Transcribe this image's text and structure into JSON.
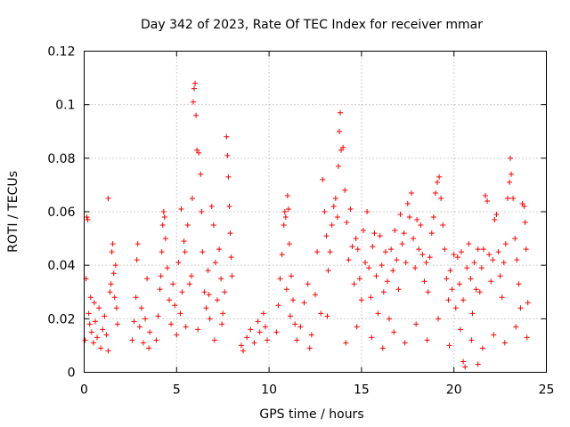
{
  "chart_data": {
    "type": "scatter",
    "title": "Day 342 of 2023, Rate Of TEC Index for receiver mmar",
    "xlabel": "GPS time / hours",
    "ylabel": "ROTI / TECUs",
    "xlim": [
      0,
      25
    ],
    "ylim": [
      0,
      0.12
    ],
    "x_ticks": [
      0,
      5,
      10,
      15,
      20,
      25
    ],
    "x_tick_labels": [
      "0",
      "5",
      "10",
      "15",
      "20",
      "25"
    ],
    "y_ticks": [
      0,
      0.02,
      0.04,
      0.06,
      0.08,
      0.1,
      0.12
    ],
    "y_tick_labels": [
      "0",
      "0.02",
      "0.04",
      "0.06",
      "0.08",
      "0.1",
      "0.12"
    ],
    "grid": true,
    "marker": "+",
    "color": "#ff0000",
    "series": [
      {
        "points": [
          [
            0.05,
            0.012
          ],
          [
            0.1,
            0.035
          ],
          [
            0.15,
            0.058
          ],
          [
            0.2,
            0.057
          ],
          [
            0.25,
            0.022
          ],
          [
            0.3,
            0.018
          ],
          [
            0.4,
            0.015
          ],
          [
            0.5,
            0.011
          ],
          [
            0.6,
            0.019
          ],
          [
            0.7,
            0.013
          ],
          [
            0.8,
            0.024
          ],
          [
            0.9,
            0.009
          ],
          [
            1.0,
            0.016
          ],
          [
            1.1,
            0.021
          ],
          [
            1.2,
            0.014
          ],
          [
            1.3,
            0.008
          ],
          [
            1.4,
            0.03
          ],
          [
            1.5,
            0.045
          ],
          [
            1.55,
            0.048
          ],
          [
            1.6,
            0.037
          ],
          [
            1.65,
            0.028
          ],
          [
            1.7,
            0.04
          ],
          [
            1.75,
            0.024
          ],
          [
            1.8,
            0.018
          ],
          [
            1.3,
            0.065
          ],
          [
            0.35,
            0.028
          ],
          [
            0.55,
            0.026
          ],
          [
            1.45,
            0.033
          ],
          [
            2.6,
            0.012
          ],
          [
            2.7,
            0.019
          ],
          [
            2.8,
            0.028
          ],
          [
            2.85,
            0.042
          ],
          [
            2.9,
            0.048
          ],
          [
            3.0,
            0.017
          ],
          [
            3.1,
            0.024
          ],
          [
            3.2,
            0.011
          ],
          [
            3.3,
            0.02
          ],
          [
            3.4,
            0.035
          ],
          [
            3.5,
            0.009
          ],
          [
            3.55,
            0.015
          ],
          [
            3.9,
            0.012
          ],
          [
            4.0,
            0.021
          ],
          [
            4.1,
            0.031
          ],
          [
            4.2,
            0.045
          ],
          [
            4.25,
            0.055
          ],
          [
            4.3,
            0.06
          ],
          [
            4.35,
            0.058
          ],
          [
            4.4,
            0.05
          ],
          [
            4.5,
            0.039
          ],
          [
            4.6,
            0.027
          ],
          [
            4.7,
            0.018
          ],
          [
            4.8,
            0.033
          ],
          [
            4.9,
            0.025
          ],
          [
            5.0,
            0.014
          ],
          [
            5.1,
            0.041
          ],
          [
            5.2,
            0.022
          ],
          [
            5.3,
            0.03
          ],
          [
            5.4,
            0.049
          ],
          [
            5.5,
            0.017
          ],
          [
            5.6,
            0.055
          ],
          [
            5.7,
            0.033
          ],
          [
            5.8,
            0.036
          ],
          [
            5.85,
            0.065
          ],
          [
            5.9,
            0.101
          ],
          [
            5.95,
            0.106
          ],
          [
            6.0,
            0.108
          ],
          [
            6.05,
            0.096
          ],
          [
            6.1,
            0.083
          ],
          [
            6.2,
            0.082
          ],
          [
            6.3,
            0.074
          ],
          [
            6.35,
            0.06
          ],
          [
            6.4,
            0.045
          ],
          [
            6.5,
            0.03
          ],
          [
            6.6,
            0.024
          ],
          [
            6.7,
            0.038
          ],
          [
            6.8,
            0.02
          ],
          [
            6.9,
            0.062
          ],
          [
            7.0,
            0.055
          ],
          [
            7.1,
            0.041
          ],
          [
            7.2,
            0.027
          ],
          [
            7.3,
            0.046
          ],
          [
            7.4,
            0.035
          ],
          [
            7.5,
            0.022
          ],
          [
            7.6,
            0.03
          ],
          [
            7.7,
            0.088
          ],
          [
            7.75,
            0.081
          ],
          [
            7.8,
            0.073
          ],
          [
            7.85,
            0.062
          ],
          [
            7.9,
            0.052
          ],
          [
            7.95,
            0.043
          ],
          [
            8.0,
            0.036
          ],
          [
            5.25,
            0.061
          ],
          [
            4.15,
            0.036
          ],
          [
            5.45,
            0.045
          ],
          [
            6.15,
            0.016
          ],
          [
            6.75,
            0.029
          ],
          [
            7.05,
            0.012
          ],
          [
            7.45,
            0.018
          ],
          [
            8.5,
            0.01
          ],
          [
            8.6,
            0.008
          ],
          [
            8.8,
            0.013
          ],
          [
            9.0,
            0.016
          ],
          [
            9.2,
            0.011
          ],
          [
            9.4,
            0.019
          ],
          [
            9.5,
            0.015
          ],
          [
            9.7,
            0.022
          ],
          [
            9.8,
            0.017
          ],
          [
            9.9,
            0.012
          ],
          [
            10.4,
            0.015
          ],
          [
            10.5,
            0.025
          ],
          [
            10.6,
            0.035
          ],
          [
            10.7,
            0.044
          ],
          [
            10.8,
            0.055
          ],
          [
            10.85,
            0.06
          ],
          [
            10.9,
            0.058
          ],
          [
            11.0,
            0.066
          ],
          [
            11.05,
            0.061
          ],
          [
            11.1,
            0.048
          ],
          [
            11.2,
            0.036
          ],
          [
            11.3,
            0.027
          ],
          [
            11.4,
            0.018
          ],
          [
            11.5,
            0.012
          ],
          [
            10.95,
            0.031
          ],
          [
            11.15,
            0.021
          ],
          [
            11.7,
            0.017
          ],
          [
            11.9,
            0.026
          ],
          [
            12.1,
            0.033
          ],
          [
            12.3,
            0.014
          ],
          [
            12.5,
            0.029
          ],
          [
            12.6,
            0.045
          ],
          [
            12.8,
            0.022
          ],
          [
            12.9,
            0.072
          ],
          [
            13.0,
            0.06
          ],
          [
            13.1,
            0.051
          ],
          [
            13.2,
            0.038
          ],
          [
            13.3,
            0.045
          ],
          [
            13.4,
            0.055
          ],
          [
            13.5,
            0.062
          ],
          [
            13.6,
            0.065
          ],
          [
            13.7,
            0.058
          ],
          [
            13.75,
            0.077
          ],
          [
            13.8,
            0.09
          ],
          [
            13.85,
            0.097
          ],
          [
            13.9,
            0.083
          ],
          [
            14.0,
            0.084
          ],
          [
            14.1,
            0.068
          ],
          [
            14.2,
            0.056
          ],
          [
            14.3,
            0.042
          ],
          [
            14.4,
            0.061
          ],
          [
            14.5,
            0.047
          ],
          [
            14.6,
            0.033
          ],
          [
            14.7,
            0.05
          ],
          [
            14.8,
            0.046
          ],
          [
            14.9,
            0.035
          ],
          [
            15.0,
            0.027
          ],
          [
            15.1,
            0.053
          ],
          [
            15.2,
            0.041
          ],
          [
            15.3,
            0.06
          ],
          [
            15.4,
            0.039
          ],
          [
            15.5,
            0.028
          ],
          [
            15.6,
            0.047
          ],
          [
            15.7,
            0.052
          ],
          [
            15.8,
            0.036
          ],
          [
            15.9,
            0.022
          ],
          [
            16.0,
            0.051
          ],
          [
            16.1,
            0.04
          ],
          [
            16.2,
            0.03
          ],
          [
            16.3,
            0.045
          ],
          [
            16.4,
            0.034
          ],
          [
            16.5,
            0.02
          ],
          [
            16.6,
            0.046
          ],
          [
            16.7,
            0.038
          ],
          [
            16.8,
            0.053
          ],
          [
            16.9,
            0.042
          ],
          [
            17.0,
            0.031
          ],
          [
            17.1,
            0.059
          ],
          [
            17.2,
            0.048
          ],
          [
            17.3,
            0.052
          ],
          [
            17.4,
            0.041
          ],
          [
            17.5,
            0.063
          ],
          [
            17.6,
            0.058
          ],
          [
            17.7,
            0.067
          ],
          [
            17.8,
            0.05
          ],
          [
            17.9,
            0.039
          ],
          [
            18.0,
            0.057
          ],
          [
            18.1,
            0.046
          ],
          [
            18.2,
            0.055
          ],
          [
            18.3,
            0.044
          ],
          [
            18.4,
            0.034
          ],
          [
            18.5,
            0.041
          ],
          [
            18.6,
            0.03
          ],
          [
            18.7,
            0.043
          ],
          [
            18.8,
            0.052
          ],
          [
            18.9,
            0.058
          ],
          [
            19.0,
            0.067
          ],
          [
            19.1,
            0.071
          ],
          [
            19.2,
            0.073
          ],
          [
            19.3,
            0.065
          ],
          [
            19.4,
            0.055
          ],
          [
            19.5,
            0.046
          ],
          [
            19.6,
            0.035
          ],
          [
            19.7,
            0.027
          ],
          [
            19.8,
            0.038
          ],
          [
            19.9,
            0.031
          ],
          [
            20.0,
            0.044
          ],
          [
            20.1,
            0.024
          ],
          [
            20.2,
            0.043
          ],
          [
            20.3,
            0.033
          ],
          [
            20.4,
            0.045
          ],
          [
            20.5,
            0.027
          ],
          [
            20.6,
            0.002
          ],
          [
            20.7,
            0.039
          ],
          [
            20.8,
            0.048
          ],
          [
            20.9,
            0.035
          ],
          [
            21.0,
            0.022
          ],
          [
            21.1,
            0.041
          ],
          [
            21.2,
            0.031
          ],
          [
            21.3,
            0.046
          ],
          [
            21.4,
            0.03
          ],
          [
            21.5,
            0.039
          ],
          [
            21.6,
            0.046
          ],
          [
            21.7,
            0.066
          ],
          [
            21.8,
            0.064
          ],
          [
            21.9,
            0.044
          ],
          [
            22.0,
            0.034
          ],
          [
            22.1,
            0.042
          ],
          [
            22.2,
            0.057
          ],
          [
            22.3,
            0.059
          ],
          [
            22.4,
            0.045
          ],
          [
            22.5,
            0.036
          ],
          [
            22.6,
            0.028
          ],
          [
            22.7,
            0.041
          ],
          [
            22.8,
            0.048
          ],
          [
            22.9,
            0.065
          ],
          [
            23.0,
            0.071
          ],
          [
            23.05,
            0.08
          ],
          [
            23.1,
            0.074
          ],
          [
            23.2,
            0.065
          ],
          [
            23.3,
            0.05
          ],
          [
            23.4,
            0.042
          ],
          [
            23.5,
            0.033
          ],
          [
            23.6,
            0.024
          ],
          [
            23.7,
            0.063
          ],
          [
            23.8,
            0.062
          ],
          [
            23.85,
            0.056
          ],
          [
            23.9,
            0.046
          ],
          [
            24.0,
            0.026
          ],
          [
            12.2,
            0.009
          ],
          [
            13.15,
            0.021
          ],
          [
            14.15,
            0.011
          ],
          [
            14.75,
            0.017
          ],
          [
            15.55,
            0.013
          ],
          [
            16.15,
            0.009
          ],
          [
            16.75,
            0.015
          ],
          [
            17.35,
            0.011
          ],
          [
            17.95,
            0.018
          ],
          [
            18.55,
            0.012
          ],
          [
            19.15,
            0.02
          ],
          [
            19.75,
            0.01
          ],
          [
            20.35,
            0.016
          ],
          [
            20.95,
            0.012
          ],
          [
            21.55,
            0.009
          ],
          [
            22.15,
            0.014
          ],
          [
            22.75,
            0.011
          ],
          [
            23.35,
            0.017
          ],
          [
            23.95,
            0.013
          ],
          [
            20.5,
            0.004
          ],
          [
            21.3,
            0.003
          ]
        ]
      }
    ]
  }
}
